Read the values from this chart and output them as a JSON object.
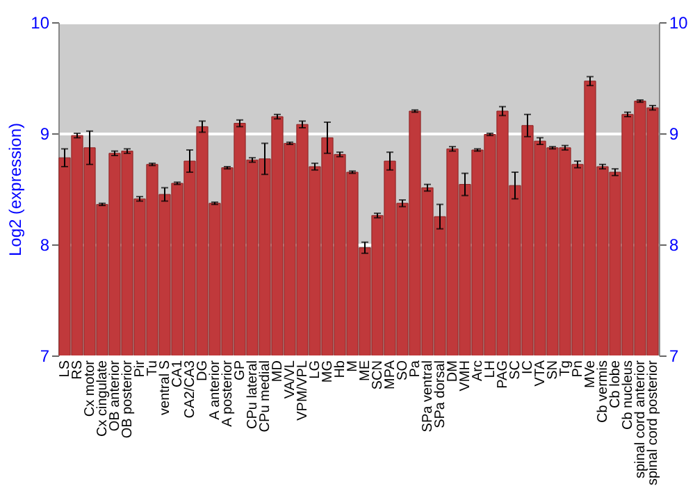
{
  "chart_data": {
    "type": "bar",
    "ylabel": "Log2 (expression)",
    "categories": [
      "LS",
      "RS",
      "Cx motor",
      "Cx cingulate",
      "OB anterior",
      "OB posterior",
      "Pir",
      "Tu",
      "ventral S",
      "CA1",
      "CA2/CA3",
      "DG",
      "A anterior",
      "A posterior",
      "GP",
      "CPu lateral",
      "CPu medial",
      "MD",
      "VA/VL",
      "VPM/VPL",
      "LG",
      "MG",
      "Hb",
      "M",
      "ME",
      "SCN",
      "MPA",
      "SO",
      "Pa",
      "SPa ventral",
      "SPa dorsal",
      "DM",
      "VMH",
      "Arc",
      "LH",
      "PAG",
      "SC",
      "IC",
      "VTA",
      "SN",
      "Tg",
      "Pn",
      "MVe",
      "Cb vermis",
      "Cb lobe",
      "Cb nucleus",
      "spinal cord anterior",
      "spinal cord posterior"
    ],
    "values": [
      8.78,
      8.98,
      8.87,
      8.36,
      8.82,
      8.84,
      8.41,
      8.72,
      8.45,
      8.55,
      8.75,
      9.06,
      8.37,
      8.69,
      9.09,
      8.76,
      8.77,
      9.15,
      8.91,
      9.08,
      8.7,
      8.96,
      8.81,
      8.65,
      7.97,
      8.26,
      8.75,
      8.37,
      9.2,
      8.51,
      8.25,
      8.86,
      8.54,
      8.85,
      8.99,
      9.2,
      8.53,
      9.07,
      8.93,
      8.87,
      8.87,
      8.72,
      9.47,
      8.7,
      8.65,
      9.17,
      9.29,
      9.23
    ],
    "errors": [
      0.08,
      0.02,
      0.15,
      0.01,
      0.02,
      0.02,
      0.02,
      0.01,
      0.06,
      0.01,
      0.1,
      0.05,
      0.01,
      0.01,
      0.03,
      0.02,
      0.14,
      0.02,
      0.01,
      0.03,
      0.03,
      0.14,
      0.02,
      0.01,
      0.05,
      0.02,
      0.08,
      0.03,
      0.01,
      0.03,
      0.11,
      0.02,
      0.1,
      0.01,
      0.01,
      0.04,
      0.12,
      0.1,
      0.03,
      0.01,
      0.02,
      0.03,
      0.04,
      0.02,
      0.03,
      0.02,
      0.01,
      0.02
    ],
    "color": "#c0393b",
    "ylim": [
      7,
      10
    ],
    "yticks": [
      7,
      8,
      9,
      10
    ],
    "y2lim": [
      7,
      10
    ],
    "y2ticks": [
      7,
      8,
      9,
      10
    ],
    "grid": "y"
  }
}
